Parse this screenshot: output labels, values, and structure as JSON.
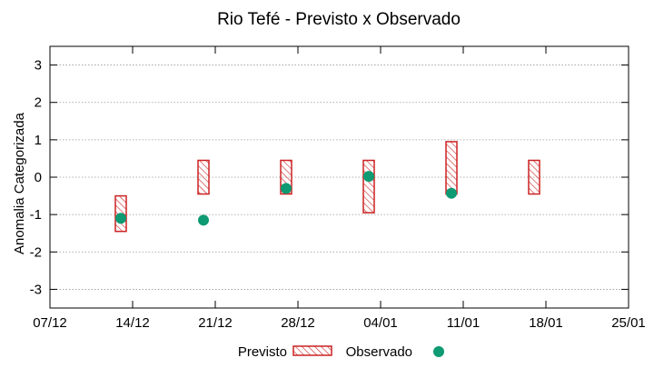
{
  "chart_data": {
    "type": "range-bar",
    "title": "Rio Tefé - Previsto x Observado",
    "xlabel": "",
    "ylabel": "Anomalia Categorizada",
    "ylim": [
      -3.5,
      3.5
    ],
    "yticks": [
      3,
      2,
      1,
      0,
      -1,
      -2,
      -3
    ],
    "x_ticks": [
      "07/12",
      "14/12",
      "21/12",
      "28/12",
      "04/01",
      "11/01",
      "18/01",
      "25/01"
    ],
    "grid": true,
    "legend_position": "bottom",
    "colors": {
      "previsto": "#cc2222",
      "observado": "#0e9a72",
      "grid": "#999999"
    },
    "series": [
      {
        "name": "Previsto",
        "kind": "range",
        "points": [
          {
            "x": "13/12",
            "low": -1.45,
            "high": -0.5
          },
          {
            "x": "20/12",
            "low": -0.45,
            "high": 0.45
          },
          {
            "x": "27/12",
            "low": -0.45,
            "high": 0.45
          },
          {
            "x": "03/01",
            "low": -0.95,
            "high": 0.45
          },
          {
            "x": "10/01",
            "low": -0.45,
            "high": 0.95
          },
          {
            "x": "17/01",
            "low": -0.45,
            "high": 0.45
          }
        ]
      },
      {
        "name": "Observado",
        "kind": "point",
        "points": [
          {
            "x": "13/12",
            "y": -1.1
          },
          {
            "x": "20/12",
            "y": -1.15
          },
          {
            "x": "27/12",
            "y": -0.3
          },
          {
            "x": "03/01",
            "y": 0.02
          },
          {
            "x": "10/01",
            "y": -0.43
          }
        ]
      }
    ]
  }
}
